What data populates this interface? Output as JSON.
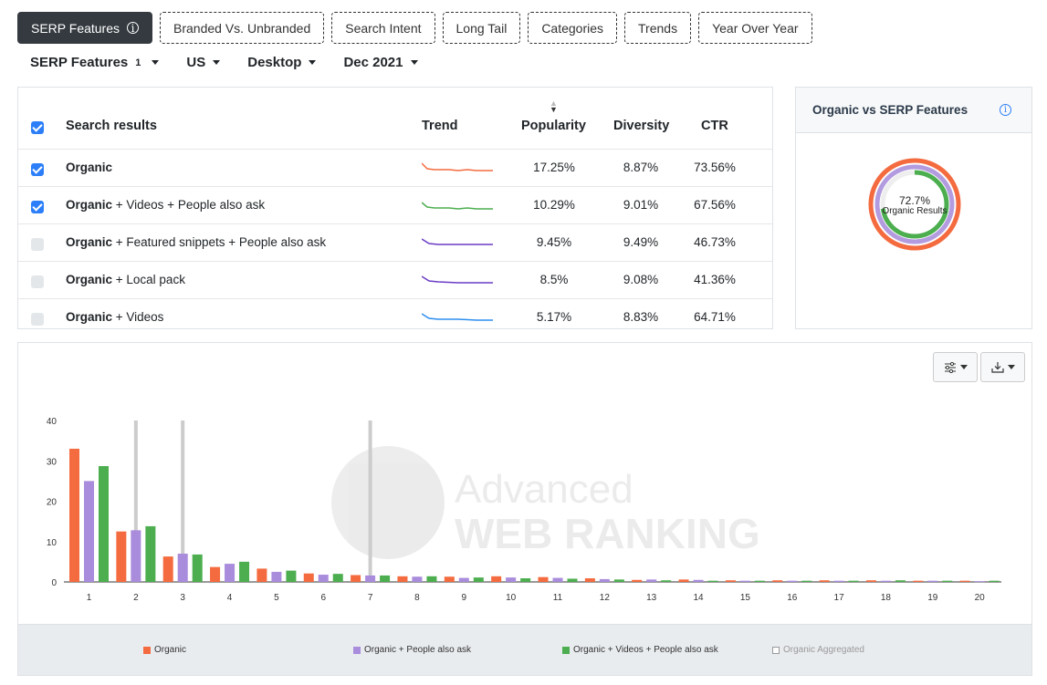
{
  "tabs": [
    {
      "label": "SERP Features",
      "active": true
    },
    {
      "label": "Branded Vs. Unbranded"
    },
    {
      "label": "Search Intent"
    },
    {
      "label": "Long Tail"
    },
    {
      "label": "Categories"
    },
    {
      "label": "Trends"
    },
    {
      "label": "Year Over Year"
    }
  ],
  "filters": {
    "serp": {
      "label": "SERP Features",
      "count": "1"
    },
    "country": "US",
    "device": "Desktop",
    "date": "Dec 2021"
  },
  "table": {
    "headers": {
      "name": "Search results",
      "trend": "Trend",
      "popularity": "Popularity",
      "diversity": "Diversity",
      "ctr": "CTR"
    },
    "rows": [
      {
        "strong": "Organic",
        "rest": "",
        "checked": true,
        "color": "#f46b3f",
        "popularity": "17.25%",
        "diversity": "8.87%",
        "ctr": "73.56%"
      },
      {
        "strong": "Organic",
        "rest": " + Videos + People also ask",
        "checked": true,
        "color": "#4cae4f",
        "popularity": "10.29%",
        "diversity": "9.01%",
        "ctr": "67.56%"
      },
      {
        "strong": "Organic",
        "rest": " + Featured snippets + People also ask",
        "checked": false,
        "color": "#6a3cc4",
        "popularity": "9.45%",
        "diversity": "9.49%",
        "ctr": "46.73%"
      },
      {
        "strong": "Organic",
        "rest": " + Local pack",
        "checked": false,
        "color": "#6a3cc4",
        "popularity": "8.5%",
        "diversity": "9.08%",
        "ctr": "41.36%"
      },
      {
        "strong": "Organic",
        "rest": " + Videos",
        "checked": false,
        "color": "#2d8ef0",
        "popularity": "5.17%",
        "diversity": "8.83%",
        "ctr": "64.71%"
      }
    ]
  },
  "donut": {
    "title": "Organic vs SERP Features",
    "value": "72.7%",
    "label": "Organic Results",
    "rings": [
      {
        "color": "#f46b3f",
        "fraction": 1.0
      },
      {
        "color": "#b39be0",
        "fraction": 1.0
      },
      {
        "color": "#4cae4f",
        "fraction": 0.727
      }
    ]
  },
  "icons": {
    "tab_info": "info-icon",
    "donut_info": "info-icon",
    "settings": "sliders-icon",
    "download": "download-icon"
  },
  "chart_data": {
    "type": "bar",
    "categories": [
      "1",
      "2",
      "3",
      "4",
      "5",
      "6",
      "7",
      "8",
      "9",
      "10",
      "11",
      "12",
      "13",
      "14",
      "15",
      "16",
      "17",
      "18",
      "19",
      "20"
    ],
    "ylim": [
      0,
      40
    ],
    "yticks": [
      "0",
      "10",
      "20",
      "30",
      "40"
    ],
    "series": [
      {
        "name": "Organic",
        "color": "#f46b3f",
        "values": [
          33,
          12.5,
          6.3,
          3.7,
          3.3,
          2.1,
          1.7,
          1.4,
          1.3,
          1.4,
          1.2,
          0.9,
          0.5,
          0.6,
          0.4,
          0.4,
          0.4,
          0.4,
          0.3,
          0.3
        ]
      },
      {
        "name": "Organic + People also ask",
        "color": "#a98cdc",
        "values": [
          25,
          12.8,
          7.0,
          4.5,
          2.5,
          1.8,
          1.6,
          1.3,
          1.0,
          1.1,
          1.0,
          0.7,
          0.6,
          0.5,
          0.3,
          0.3,
          0.3,
          0.3,
          0.3,
          0.2
        ]
      },
      {
        "name": "Organic + Videos + People also ask",
        "color": "#4cae4f",
        "values": [
          28.7,
          13.8,
          6.8,
          5.0,
          2.8,
          2.0,
          1.6,
          1.4,
          1.1,
          0.9,
          0.8,
          0.6,
          0.4,
          0.3,
          0.3,
          0.3,
          0.3,
          0.4,
          0.3,
          0.3
        ]
      },
      {
        "name": "Organic Aggregated",
        "color": "#cccccc",
        "values": [
          null,
          40,
          40,
          null,
          null,
          null,
          40,
          null,
          null,
          null,
          null,
          null,
          null,
          null,
          null,
          null,
          null,
          null,
          null,
          null
        ],
        "disabled": true
      }
    ],
    "legend": "bottom"
  },
  "watermark": {
    "line1": "Advanced",
    "line2": "WEB RANKING"
  }
}
